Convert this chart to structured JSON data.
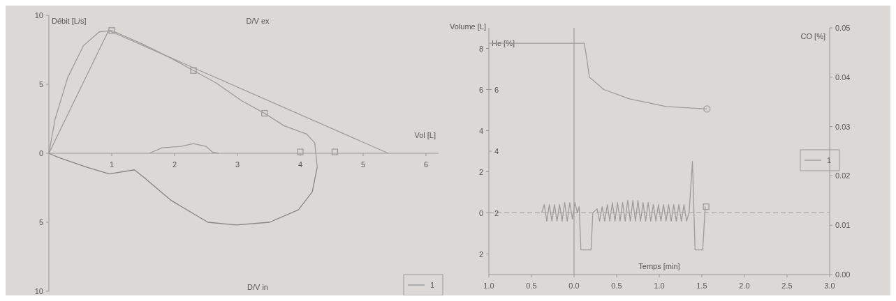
{
  "chart_data": [
    {
      "type": "line",
      "xlabel": "Vol [L]",
      "ylabel": "Débit [L/s]",
      "annotations": [
        "D/V ex",
        "D/V in"
      ],
      "xlim": [
        0,
        6.2
      ],
      "ylim": [
        -10,
        10
      ],
      "xticks": [
        1,
        2,
        3,
        4,
        5,
        6
      ],
      "yticks": [
        10,
        5,
        0,
        {
          "value": -5,
          "label": "5"
        },
        {
          "value": -10,
          "label": "10"
        }
      ],
      "legend": "bottom right",
      "series": [
        {
          "color": "#9c9c9c",
          "x": [
            0,
            0.95,
            5.4
          ],
          "values": [
            0,
            8.9,
            0
          ]
        },
        {
          "name": "1",
          "color": "#9c9c9c",
          "x": [
            0,
            0.1,
            0.3,
            0.55,
            0.8,
            1.0,
            1.5,
            1.94,
            2.3,
            2.66,
            3.07,
            3.43,
            3.74,
            4.1,
            4.23,
            4.27
          ],
          "values": [
            0,
            2.5,
            5.5,
            7.8,
            8.8,
            8.9,
            7.9,
            6.9,
            6.0,
            5.1,
            3.8,
            2.9,
            2.0,
            1.4,
            0.75,
            -1.0
          ]
        },
        {
          "color": "#868686",
          "x": [
            0,
            0.15,
            0.6,
            0.96,
            1.36,
            1.5,
            1.94,
            2.53,
            2.98,
            3.51,
            3.97,
            4.19,
            4.27
          ],
          "values": [
            0,
            -0.3,
            -1.0,
            -1.5,
            -1.2,
            -1.7,
            -3.4,
            -5.0,
            -5.2,
            -5.0,
            -4.1,
            -2.8,
            -1.0
          ]
        },
        {
          "color": "#9c9c9c",
          "x": [
            1.6,
            1.8,
            2.1,
            2.3,
            2.5,
            2.6,
            2.7
          ],
          "values": [
            0,
            0.4,
            0.5,
            0.7,
            0.5,
            0.1,
            0
          ]
        },
        {
          "type": "scatter",
          "marker": "square",
          "color": "#9c9c9c",
          "x": [
            1.0,
            2.3,
            3.43,
            4.0,
            4.55
          ],
          "values": [
            8.9,
            6.0,
            2.9,
            0.1,
            0.1
          ]
        }
      ]
    },
    {
      "type": "line",
      "xlabel": "Temps [min]",
      "ylabel": "Volume [L]",
      "y2label": "He [%]",
      "y3label": "CO [%]",
      "xlim": [
        -1,
        3
      ],
      "ylim": [
        -3,
        9
      ],
      "y2lim": [
        0,
        8
      ],
      "y3lim": [
        0,
        0.05
      ],
      "xticks": [
        {
          "value": -1,
          "label": "1.0"
        },
        {
          "value": -0.5,
          "label": "0.5"
        },
        {
          "value": 0,
          "label": "0.0"
        },
        {
          "value": 0.5,
          "label": "0.5"
        },
        {
          "value": 1,
          "label": "1.0"
        },
        {
          "value": 1.5,
          "label": "1.5"
        },
        {
          "value": 2,
          "label": "2.0"
        },
        {
          "value": 2.5,
          "label": "2.5"
        },
        {
          "value": 3,
          "label": "3.0"
        }
      ],
      "yticks": [
        8,
        6,
        4,
        2,
        0,
        {
          "value": -2,
          "label": "2"
        }
      ],
      "y2ticks": [
        6,
        4,
        2
      ],
      "y3ticks": [
        {
          "value": 0,
          "label": "0.00"
        },
        {
          "value": 0.01,
          "label": "0.01"
        },
        {
          "value": 0.02,
          "label": "0.02"
        },
        {
          "value": 0.03,
          "label": "0.03"
        },
        {
          "value": 0.04,
          "label": "0.04"
        },
        {
          "value": 0.05,
          "label": "0.05"
        }
      ],
      "legend": "right",
      "ref_lines": [
        {
          "axis": "x",
          "value": 0,
          "color": "#9c9c9c",
          "line_style": "solid"
        },
        {
          "axis": "y",
          "value": 0,
          "color": "#9c9c9c",
          "line_style": "dashed"
        }
      ],
      "series": [
        {
          "axis": "y2",
          "color": "#9c9c9c",
          "x": [
            -1.0,
            0.12,
            0.15,
            0.18,
            0.35,
            0.65,
            1.08,
            1.56
          ],
          "values": [
            7.5,
            7.5,
            7.0,
            6.4,
            6.0,
            5.7,
            5.45,
            5.37
          ]
        },
        {
          "type": "scatter",
          "axis": "y2",
          "marker": "circle",
          "color": "#9c9c9c",
          "x": [
            1.56
          ],
          "values": [
            5.37
          ]
        },
        {
          "name": "1",
          "color": "#9c9c9c",
          "x": [
            -0.38,
            -0.35,
            -0.32,
            -0.29,
            -0.26,
            -0.23,
            -0.2,
            -0.17,
            -0.14,
            -0.11,
            -0.08,
            -0.05,
            -0.02,
            0.01,
            0.04,
            0.06,
            0.08,
            0.2,
            0.22,
            0.27,
            0.3,
            0.33,
            0.36,
            0.39,
            0.42,
            0.45,
            0.48,
            0.51,
            0.54,
            0.57,
            0.6,
            0.63,
            0.66,
            0.69,
            0.72,
            0.75,
            0.78,
            0.81,
            0.84,
            0.87,
            0.9,
            0.93,
            0.96,
            0.99,
            1.02,
            1.05,
            1.08,
            1.11,
            1.14,
            1.17,
            1.2,
            1.23,
            1.26,
            1.29,
            1.32,
            1.35,
            1.39,
            1.42,
            1.51,
            1.54
          ],
          "values": [
            0,
            0.4,
            -0.4,
            0.4,
            -0.4,
            0.4,
            -0.4,
            0.4,
            -0.4,
            0.5,
            -0.4,
            0.5,
            -0.3,
            0.5,
            0,
            0.3,
            -1.8,
            -1.8,
            0,
            0.2,
            -0.4,
            0.3,
            -0.4,
            0.4,
            -0.4,
            0.5,
            -0.4,
            0.5,
            -0.4,
            0.5,
            -0.4,
            0.6,
            -0.4,
            0.6,
            -0.4,
            0.6,
            -0.4,
            0.5,
            -0.4,
            0.5,
            -0.4,
            0.4,
            -0.4,
            0.4,
            -0.4,
            0.4,
            -0.4,
            0.4,
            -0.4,
            0.4,
            -0.4,
            0.4,
            -0.4,
            0.4,
            -0.4,
            0,
            2.5,
            -1.8,
            -1.8,
            0.3
          ]
        },
        {
          "type": "scatter",
          "marker": "square",
          "color": "#9c9c9c",
          "x": [
            1.55
          ],
          "values": [
            0.3
          ]
        }
      ]
    }
  ]
}
